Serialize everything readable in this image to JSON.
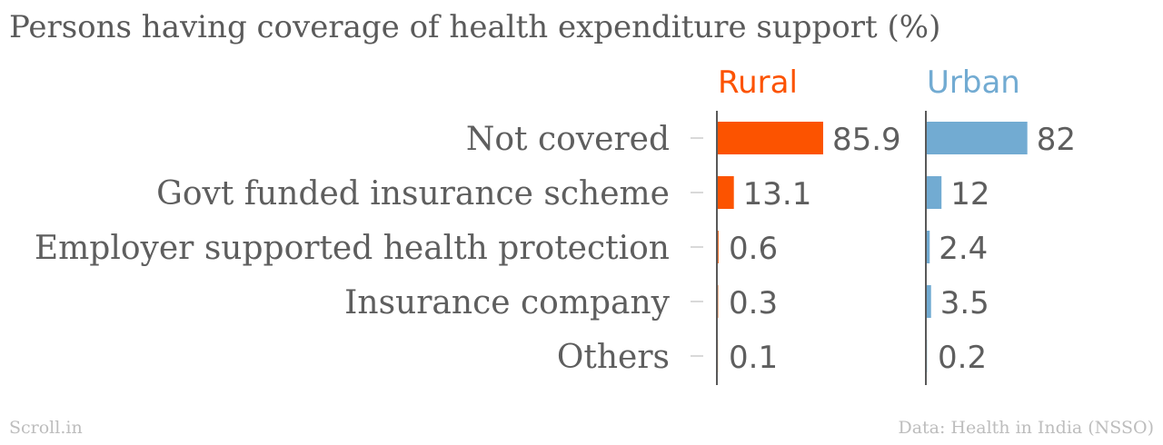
{
  "chart_data": {
    "type": "bar",
    "title": "Persons having coverage of health expenditure support (%)",
    "categories": [
      "Not covered",
      "Govt funded insurance scheme",
      "Employer supported health protection",
      "Insurance company",
      "Others"
    ],
    "series": [
      {
        "name": "Rural",
        "values": [
          85.9,
          13.1,
          0.6,
          0.3,
          0.1
        ],
        "color": "#fc5300"
      },
      {
        "name": "Urban",
        "values": [
          82,
          12,
          2.4,
          3.5,
          0.2
        ],
        "color": "#72abd2"
      }
    ],
    "value_labels": {
      "Rural": [
        "85.9",
        "13.1",
        "0.6",
        "0.3",
        "0.1"
      ],
      "Urban": [
        "82",
        "12",
        "2.4",
        "3.5",
        "0.2"
      ]
    },
    "xlim": [
      0,
      100
    ],
    "grid": false,
    "legend": "series names above panels"
  },
  "footer": {
    "source_left": "Scroll.in",
    "source_right": "Data: Health in India (NSSO)"
  }
}
